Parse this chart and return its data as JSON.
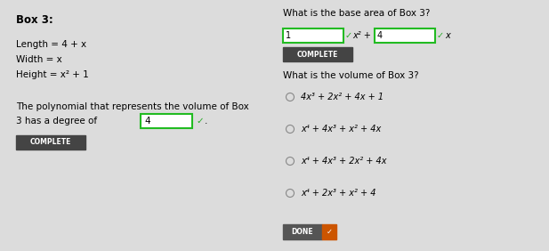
{
  "bg_color": "#dcdcdc",
  "title_left": "Box 3:",
  "left_lines": [
    "Length = 4 + x",
    "Width = x",
    "Height = x² + 1"
  ],
  "poly_text1": "The polynomial that represents the volume of Box",
  "poly_text2": "3 has a degree of",
  "poly_box_val": "4",
  "right_title": "What is the base area of Box 3?",
  "input_box1_val": "1",
  "input_box2_val": "4",
  "vol_question": "What is the volume of Box 3?",
  "options": [
    "4x³ + 2x² + 4x + 1",
    "x⁴ + 4x³ + x² + 4x",
    "x⁴ + 4x³ + 2x² + 4x",
    "x⁴ + 2x³ + x² + 4"
  ],
  "done_label": "DONE",
  "green_check": "#22aa22",
  "input_border": "#22bb22",
  "complete_bg": "#444444",
  "done_bg": "#555555",
  "done_check_bg": "#cc5500"
}
